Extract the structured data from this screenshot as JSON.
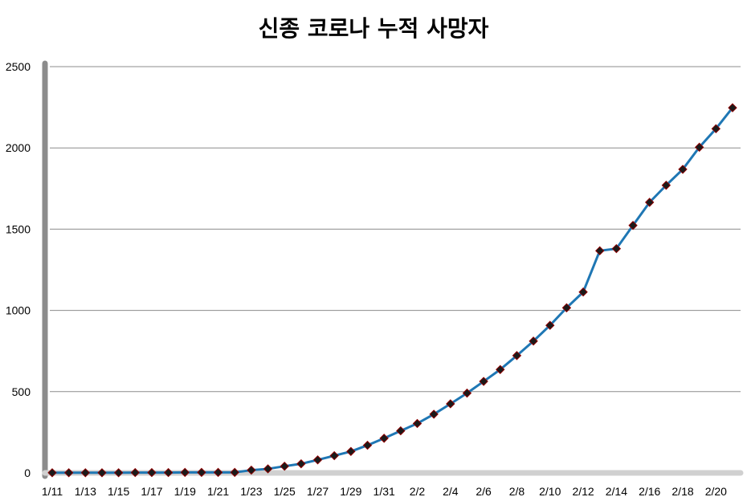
{
  "chart_data": {
    "type": "line",
    "title": "신종 코로나 누적 사망자",
    "xlabel": "",
    "ylabel": "",
    "ylim": [
      0,
      2500
    ],
    "yticks": [
      "0",
      "500",
      "1000",
      "1500",
      "2000",
      "2500"
    ],
    "grid": true,
    "legend": "none",
    "line_color": "#1f77b4",
    "marker_color": "#1a1a1a",
    "marker_edge": "#8b0000",
    "categories": [
      "1/11",
      "1/12",
      "1/13",
      "1/14",
      "1/15",
      "1/16",
      "1/17",
      "1/18",
      "1/19",
      "1/20",
      "1/21",
      "1/22",
      "1/23",
      "1/24",
      "1/25",
      "1/26",
      "1/27",
      "1/28",
      "1/29",
      "1/30",
      "1/31",
      "2/1",
      "2/2",
      "2/3",
      "2/4",
      "2/5",
      "2/6",
      "2/7",
      "2/8",
      "2/9",
      "2/10",
      "2/11",
      "2/12",
      "2/13",
      "2/14",
      "2/15",
      "2/16",
      "2/17",
      "2/18",
      "2/19",
      "2/20",
      "2/21"
    ],
    "xtick_labels": [
      "1/11",
      "1/13",
      "1/15",
      "1/17",
      "1/19",
      "1/21",
      "1/23",
      "1/25",
      "1/27",
      "1/29",
      "1/31",
      "2/2",
      "2/4",
      "2/6",
      "2/8",
      "2/10",
      "2/12",
      "2/14",
      "2/16",
      "2/18",
      "2/20"
    ],
    "series": [
      {
        "values": [
          1,
          1,
          1,
          1,
          1,
          2,
          2,
          2,
          3,
          3,
          3,
          3,
          17,
          25,
          41,
          56,
          80,
          106,
          132,
          170,
          213,
          259,
          304,
          361,
          425,
          491,
          563,
          636,
          722,
          811,
          908,
          1016,
          1113,
          1367,
          1380,
          1523,
          1665,
          1770,
          1868,
          2004,
          2118,
          2247
        ]
      }
    ]
  }
}
